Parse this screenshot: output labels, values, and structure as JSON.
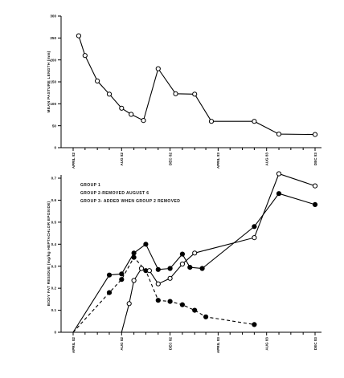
{
  "chart_data": [
    {
      "type": "line",
      "ylabel": "MEAN PASTURE LENGTH (mm)",
      "ylim": [
        0,
        300
      ],
      "yticks": [
        "0",
        "50",
        "100",
        "150",
        "200",
        "250",
        "300"
      ],
      "xticks": [
        "APRIL 82",
        "AUG 82",
        "DEC 82",
        "APRIL 83",
        "AUG 83",
        "DEC 83"
      ],
      "xlim": [
        "1982-04-01",
        "1983-12-01"
      ],
      "grid": false,
      "series": [
        {
          "marker": "open-circle",
          "x": [
            "1982-04-15",
            "1982-05-01",
            "1982-06-01",
            "1982-07-01",
            "1982-08-01",
            "1982-08-25",
            "1982-09-25",
            "1982-11-01",
            "1982-12-15",
            "1983-02-01",
            "1983-03-15",
            "1983-07-01",
            "1983-09-01",
            "1983-12-01"
          ],
          "values": [
            255,
            210,
            152,
            122,
            90,
            76,
            62,
            180,
            123,
            122,
            60,
            60,
            31,
            30
          ]
        }
      ]
    },
    {
      "type": "line",
      "ylabel": "BODY FAT RESIDUE (mg/kg HEPTACHLOR EPOXIDE)",
      "ylim": [
        0,
        0.7
      ],
      "yticks": [
        "0",
        "0.1",
        "0.2",
        "0.3",
        "0.4",
        "0.5",
        "0.6",
        "0.7"
      ],
      "xticks": [
        "APRIL 82",
        "AUG 82",
        "DEC 82",
        "APRIL 83",
        "AUG 83",
        "DEC 83"
      ],
      "xlim": [
        "1982-04-01",
        "1983-12-01"
      ],
      "grid": false,
      "legend": {
        "placement": "top-left",
        "entries": [
          "GROUP 1",
          "GROUP 2-REMOVED AUGUST 6",
          "GROUP 3- ADDED WHEN GROUP 2 REMOVED"
        ]
      },
      "series": [
        {
          "name": "GROUP 1",
          "marker": "filled-circle",
          "style": "solid",
          "x": [
            "1982-04-01",
            "1982-07-01",
            "1982-08-01",
            "1982-09-01",
            "1982-10-01",
            "1982-11-01",
            "1982-12-01",
            "1983-01-01",
            "1983-01-20",
            "1983-02-20",
            "1983-07-01",
            "1983-09-01",
            "1983-12-01"
          ],
          "values": [
            0,
            0.26,
            0.265,
            0.36,
            0.4,
            0.285,
            0.29,
            0.355,
            0.295,
            0.29,
            0.48,
            0.63,
            0.58
          ]
        },
        {
          "name": "GROUP 2-REMOVED AUGUST 6",
          "marker": "filled-circle",
          "style": "dashed",
          "x": [
            "1982-04-01",
            "1982-07-01",
            "1982-08-01",
            "1982-09-01",
            "1982-10-01",
            "1982-11-01",
            "1982-12-01",
            "1983-01-01",
            "1983-02-01",
            "1983-03-01",
            "1983-07-01"
          ],
          "values": [
            0,
            0.18,
            0.24,
            0.34,
            0.28,
            0.145,
            0.14,
            0.125,
            0.1,
            0.07,
            0.035
          ]
        },
        {
          "name": "GROUP 3- ADDED WHEN GROUP 2 REMOVED",
          "marker": "open-circle",
          "style": "solid",
          "x": [
            "1982-08-01",
            "1982-08-20",
            "1982-09-01",
            "1982-09-20",
            "1982-10-10",
            "1982-11-01",
            "1982-12-01",
            "1983-01-01",
            "1983-02-01",
            "1983-07-01",
            "1983-09-01",
            "1983-12-01"
          ],
          "values": [
            0,
            0.13,
            0.235,
            0.29,
            0.28,
            0.22,
            0.245,
            0.31,
            0.36,
            0.43,
            0.72,
            0.665
          ]
        }
      ]
    }
  ]
}
